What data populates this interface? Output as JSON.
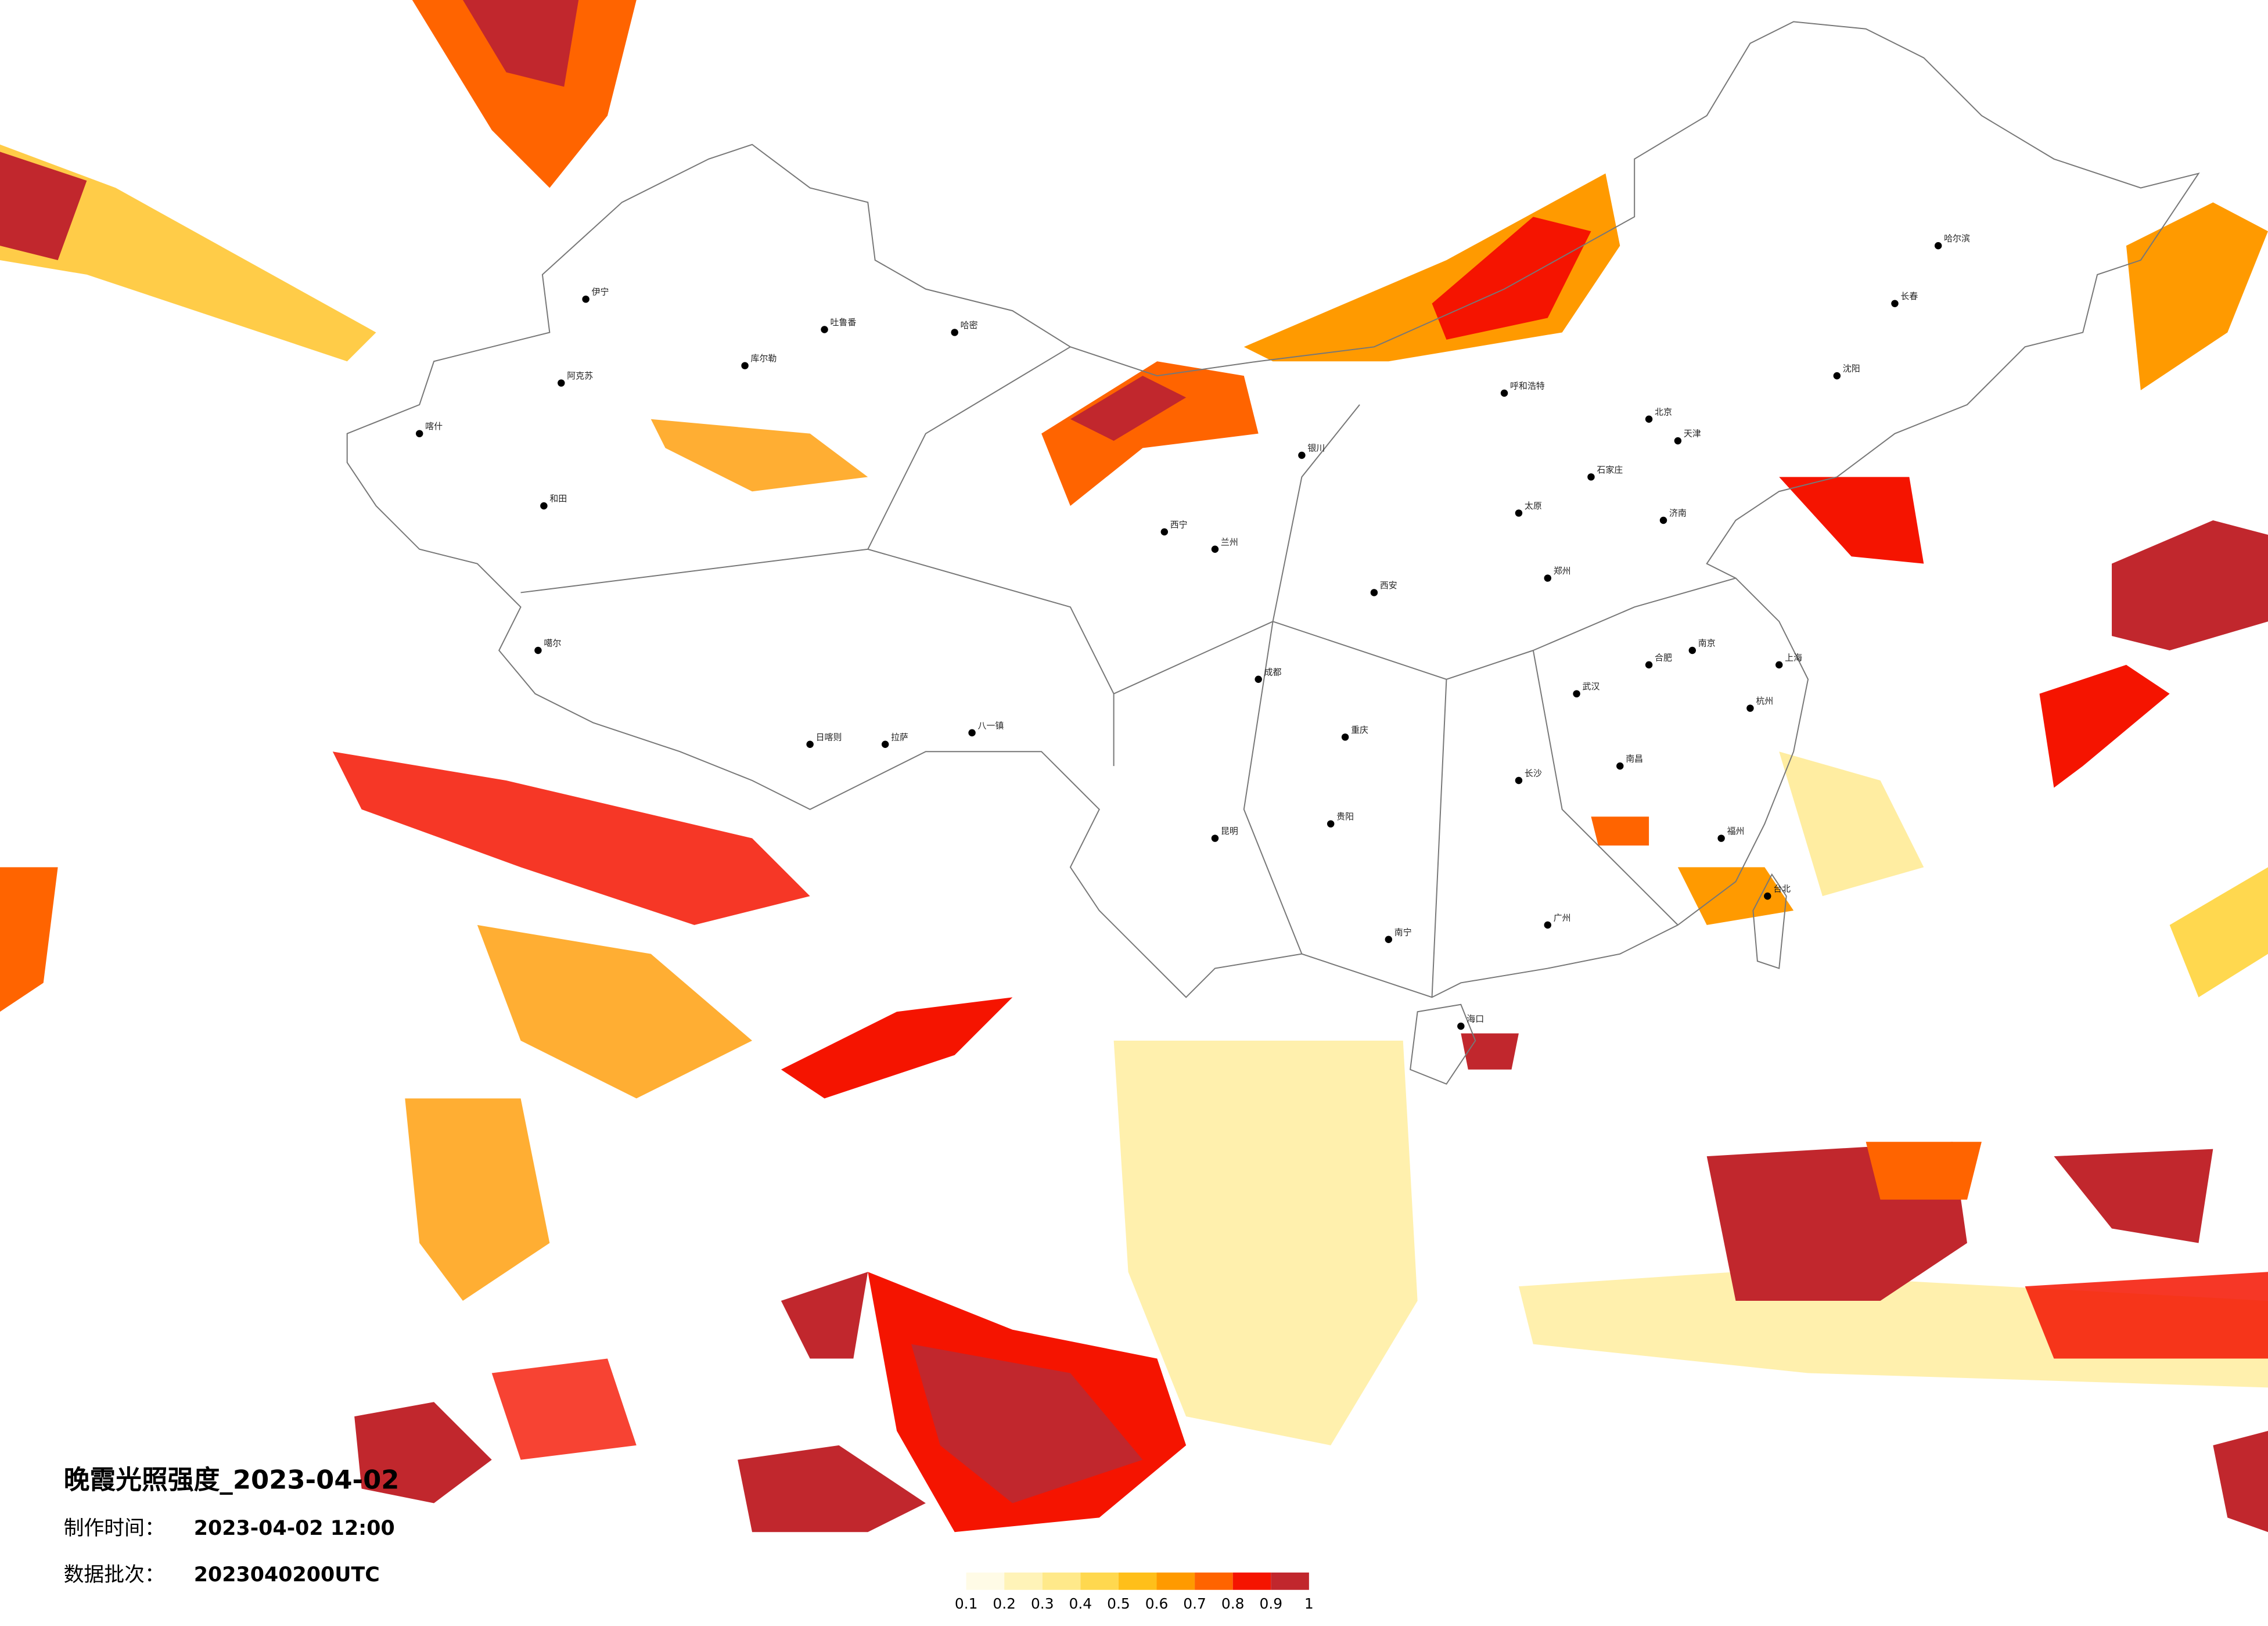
{
  "header": {
    "title": "晚霞光照强度_2023-04-02",
    "make_time_label": "制作时间：",
    "make_time": "2023-04-02 12:00",
    "batch_label": "数据批次：",
    "batch": "2023040200UTC"
  },
  "legend": {
    "colors": [
      "#fffbe6",
      "#fff3b8",
      "#ffe98a",
      "#ffd84f",
      "#ffbf1a",
      "#ff9a00",
      "#ff6400",
      "#f51400",
      "#c1272d"
    ],
    "ticks": [
      0.1,
      0.2,
      0.3,
      0.4,
      0.5,
      0.6,
      0.7,
      0.8,
      0.9,
      1
    ]
  },
  "cities": [
    "伊宁",
    "阿克苏",
    "喀什",
    "和田",
    "库尔勒",
    "哈密",
    "吐鲁番",
    "噶尔",
    "日喀则",
    "拉萨",
    "八一镇",
    "西宁",
    "兰州",
    "银川",
    "呼和浩特",
    "北京",
    "天津",
    "石家庄",
    "太原",
    "济南",
    "郑州",
    "西安",
    "成都",
    "重庆",
    "贵阳",
    "昆明",
    "南宁",
    "广州",
    "海口",
    "长沙",
    "武汉",
    "南昌",
    "福州",
    "杭州",
    "南京",
    "合肥",
    "上海",
    "沈阳",
    "长春",
    "哈尔滨",
    "台北"
  ]
}
